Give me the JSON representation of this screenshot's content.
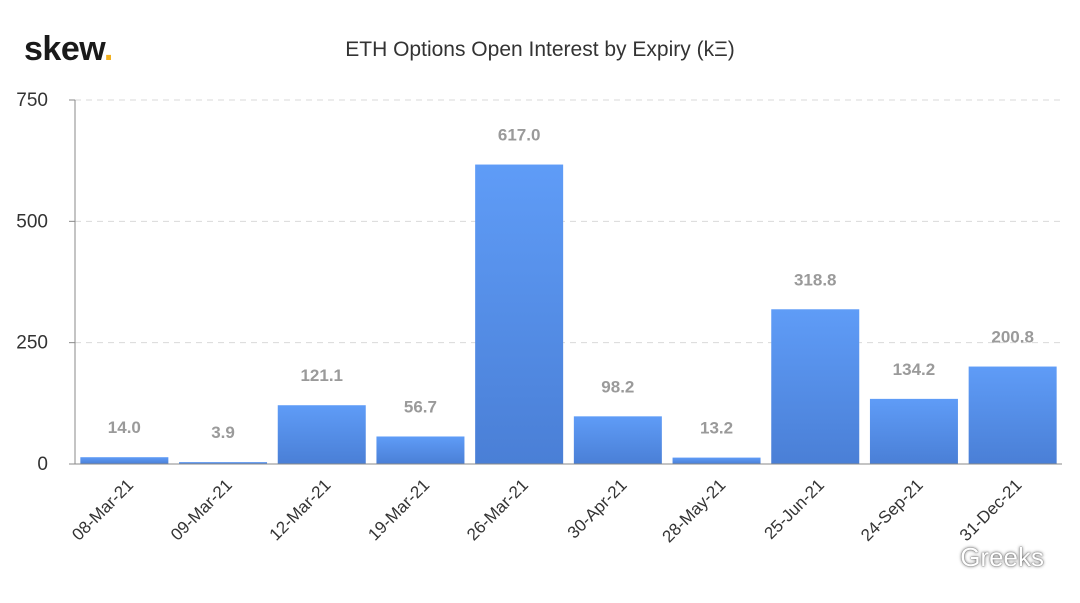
{
  "logo": {
    "text": "skew",
    "dot": "."
  },
  "watermark": {
    "text": "Greeks",
    "icon": "wechat-icon"
  },
  "chart_data": {
    "type": "bar",
    "title": "ETH Options Open Interest by Expiry (kΞ)",
    "xlabel": "",
    "ylabel": "",
    "categories": [
      "08-Mar-21",
      "09-Mar-21",
      "12-Mar-21",
      "19-Mar-21",
      "26-Mar-21",
      "30-Apr-21",
      "28-May-21",
      "25-Jun-21",
      "24-Sep-21",
      "31-Dec-21"
    ],
    "values": [
      14.0,
      3.9,
      121.1,
      56.7,
      617.0,
      98.2,
      13.2,
      318.8,
      134.2,
      200.8
    ],
    "data_labels": [
      "14.0",
      "3.9",
      "121.1",
      "56.7",
      "617.0",
      "98.2",
      "13.2",
      "318.8",
      "134.2",
      "200.8"
    ],
    "ylim": [
      0,
      750
    ],
    "yticks": [
      0,
      250,
      500,
      750
    ],
    "grid": true,
    "bar_color_top": "#5f9cf7",
    "bar_color_bottom": "#4a7fd6"
  }
}
